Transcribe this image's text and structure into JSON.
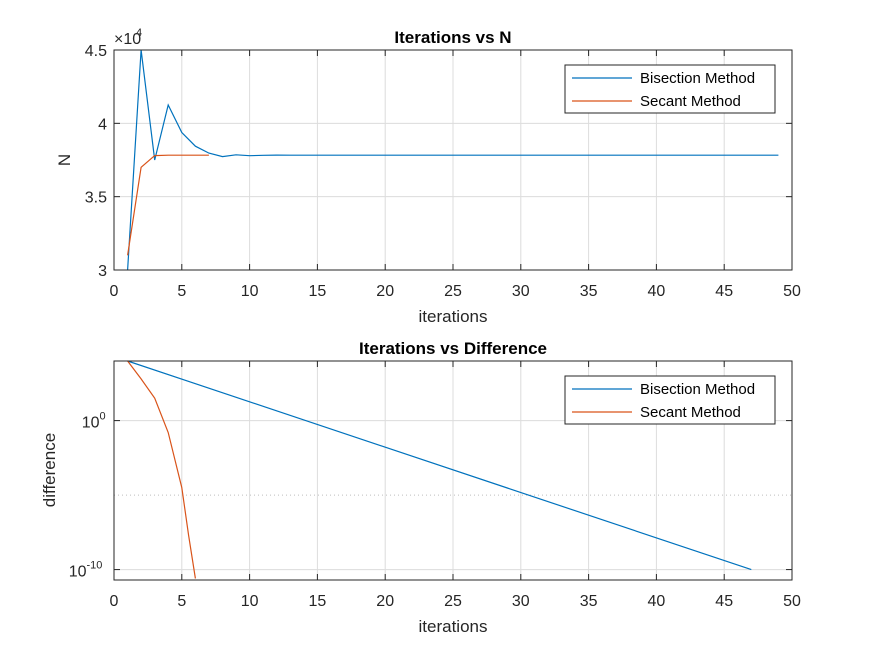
{
  "chart_data": [
    {
      "type": "line",
      "title": "Iterations vs N",
      "xlabel": "iterations",
      "ylabel": "N",
      "xlim": [
        0,
        50
      ],
      "ylim": [
        30000,
        45000
      ],
      "xticks": [
        "0",
        "5",
        "10",
        "15",
        "20",
        "25",
        "30",
        "35",
        "40",
        "45",
        "50"
      ],
      "yticks": [
        "3",
        "3.5",
        "4",
        "4.5"
      ],
      "exponent_label": {
        "base": "×10",
        "power": "4"
      },
      "grid": true,
      "legend_position": "top-right",
      "series": [
        {
          "name": "Bisection Method",
          "color": "#0072BD",
          "x": [
            1,
            2,
            3,
            4,
            5,
            6,
            7,
            8,
            9,
            10,
            11,
            12,
            13,
            14,
            15,
            20,
            25,
            30,
            35,
            40,
            45,
            49
          ],
          "y": [
            30000,
            45000,
            37500,
            41250,
            39375,
            38438,
            37969,
            37734,
            37852,
            37793,
            37822,
            37837,
            37830,
            37826,
            37828,
            37828,
            37828,
            37828,
            37828,
            37828,
            37828,
            37828
          ]
        },
        {
          "name": "Secant Method",
          "color": "#D95319",
          "x": [
            1,
            2,
            3,
            4,
            5,
            6,
            7
          ],
          "y": [
            31000,
            37000,
            37800,
            37828,
            37828,
            37828,
            37828
          ]
        }
      ]
    },
    {
      "type": "line",
      "title": "Iterations vs Difference",
      "xlabel": "iterations",
      "ylabel": "difference",
      "xlim": [
        0,
        50
      ],
      "yscale": "log",
      "ylim_exp": [
        -10.7,
        4
      ],
      "xticks": [
        "0",
        "5",
        "10",
        "15",
        "20",
        "25",
        "30",
        "35",
        "40",
        "45",
        "50"
      ],
      "yticks": [
        {
          "base": "10",
          "power": "0",
          "exp": 0
        },
        {
          "base": "10",
          "power": "-10",
          "exp": -10
        }
      ],
      "grid": true,
      "legend_position": "top-right",
      "series": [
        {
          "name": "Bisection Method",
          "color": "#0072BD",
          "x": [
            1,
            47
          ],
          "y_exp": [
            4.0,
            -10.0
          ]
        },
        {
          "name": "Secant Method",
          "color": "#D95319",
          "x": [
            1,
            2,
            3,
            4,
            5,
            5.5,
            6
          ],
          "y_exp": [
            4.0,
            2.8,
            1.5,
            -0.8,
            -4.5,
            -7.7,
            -10.6
          ]
        }
      ]
    }
  ]
}
